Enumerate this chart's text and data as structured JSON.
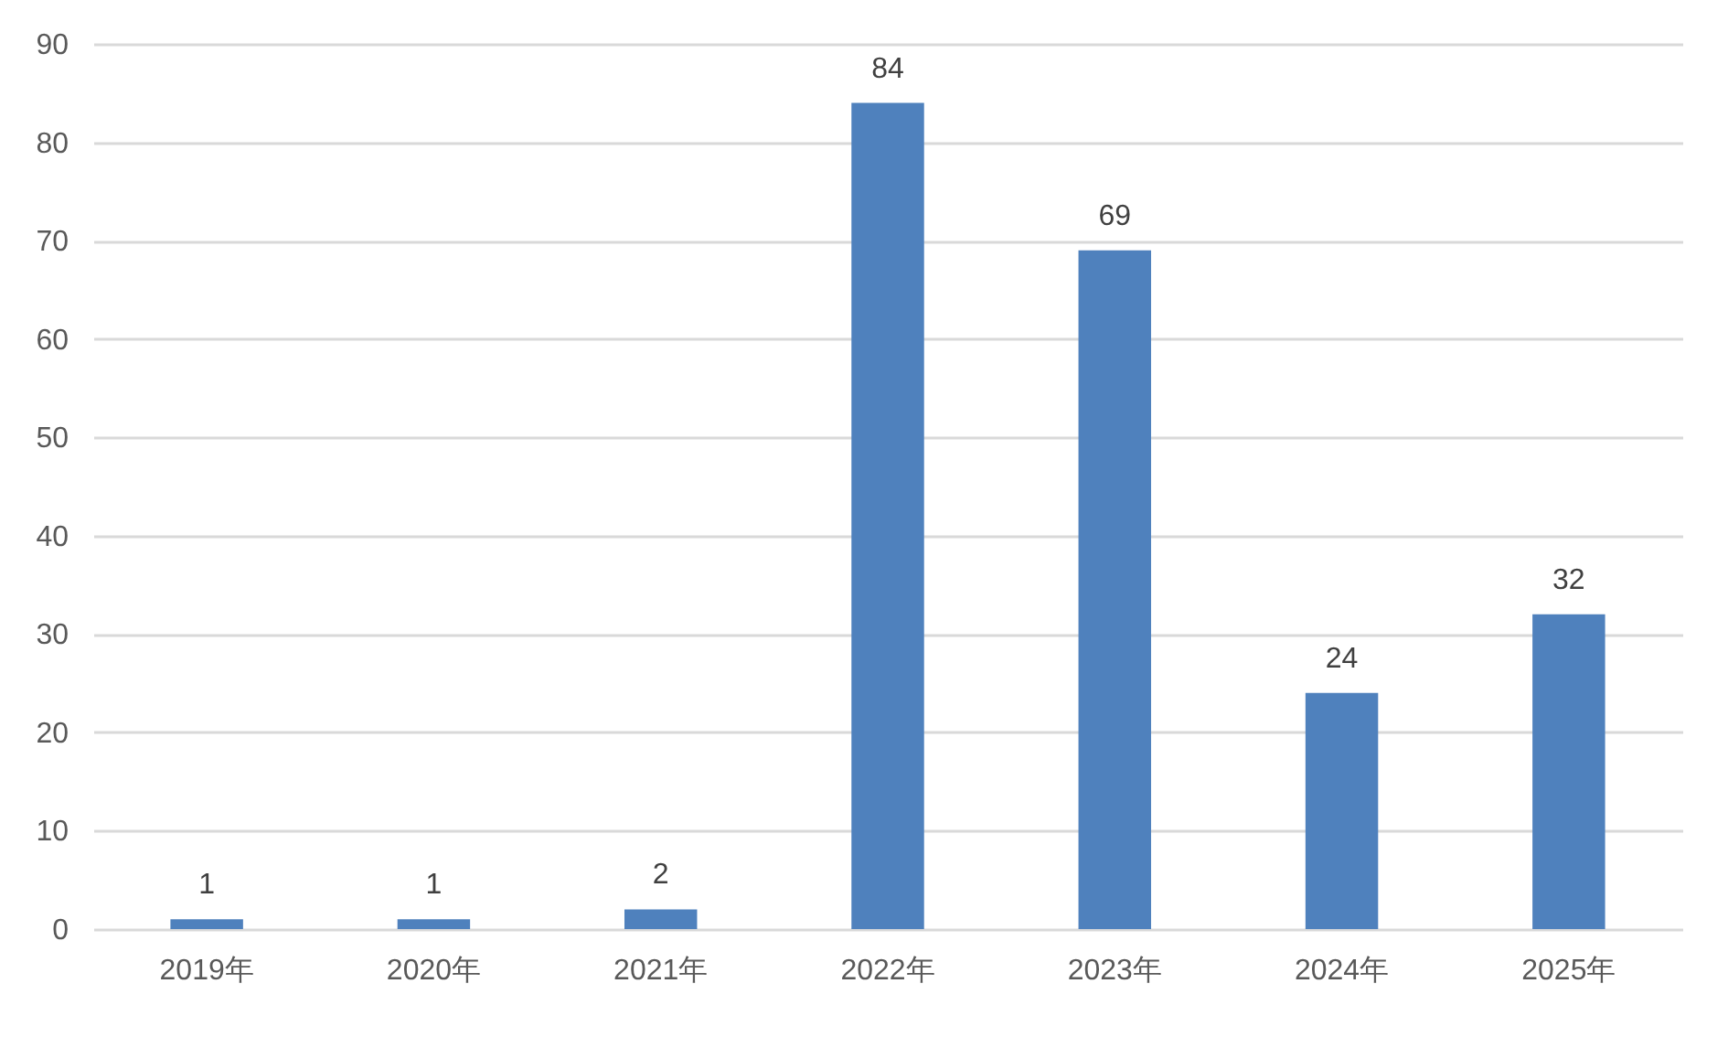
{
  "chart_data": {
    "type": "bar",
    "categories": [
      "2019年",
      "2020年",
      "2021年",
      "2022年",
      "2023年",
      "2024年",
      "2025年"
    ],
    "values": [
      1,
      1,
      2,
      84,
      69,
      24,
      32
    ],
    "color": "#4f81bd",
    "ylim": [
      0,
      90
    ],
    "yticks": [
      0,
      10,
      20,
      30,
      40,
      50,
      60,
      70,
      80,
      90
    ],
    "grid": "y",
    "data_labels": true
  }
}
